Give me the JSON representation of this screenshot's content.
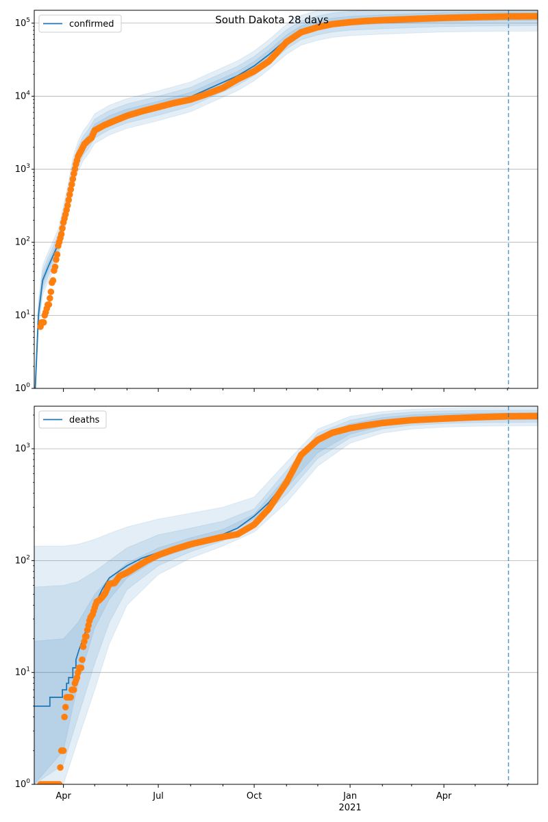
{
  "figure": {
    "title": "South Dakota 28 days"
  },
  "colors": {
    "model": "#1f77b4",
    "observed": "#ff7f0e",
    "band": "#1f77b4",
    "grid": "#b0b0b0",
    "vline": "#1f77b4"
  },
  "x_axis": {
    "ticks": [
      {
        "date": "2020-04-01",
        "label": "Apr"
      },
      {
        "date": "2020-07-01",
        "label": "Jul"
      },
      {
        "date": "2020-10-01",
        "label": "Oct"
      },
      {
        "date": "2021-01-01",
        "label": "Jan",
        "sublabel": "2021"
      },
      {
        "date": "2021-04-01",
        "label": "Apr"
      }
    ],
    "range": [
      "2020-03-04",
      "2021-06-30"
    ],
    "forecast_start": "2021-06-02"
  },
  "chart_data": [
    {
      "type": "line",
      "name": "confirmed",
      "legend": "confirmed",
      "yscale": "log",
      "ylim": [
        1,
        150000
      ],
      "yticks": [
        1,
        10,
        100,
        1000,
        10000,
        100000
      ],
      "ytick_labels": [
        "10^0",
        "10^1",
        "10^2",
        "10^3",
        "10^4",
        "10^5"
      ],
      "legend_position": "top-left",
      "grid": true,
      "model": {
        "x": [
          "2020-03-05",
          "2020-03-08",
          "2020-03-12",
          "2020-03-17",
          "2020-03-22",
          "2020-03-27",
          "2020-04-01",
          "2020-04-06",
          "2020-04-10",
          "2020-04-15",
          "2020-04-20",
          "2020-04-25",
          "2020-05-01",
          "2020-05-15",
          "2020-06-01",
          "2020-07-01",
          "2020-08-01",
          "2020-08-20",
          "2020-09-15",
          "2020-10-01",
          "2020-10-15",
          "2020-11-01",
          "2020-11-15",
          "2020-12-01",
          "2020-12-15",
          "2021-01-01",
          "2021-02-01",
          "2021-03-01",
          "2021-04-01",
          "2021-05-01",
          "2021-06-01",
          "2021-06-30"
        ],
        "y": [
          1,
          10,
          30,
          45,
          65,
          95,
          200,
          430,
          900,
          1500,
          2100,
          2600,
          3600,
          4700,
          5800,
          7400,
          9800,
          13000,
          19000,
          26000,
          37000,
          60000,
          80000,
          93000,
          102000,
          108000,
          113000,
          117000,
          121000,
          123000,
          124000,
          124500
        ]
      },
      "band_factors": [
        1.15,
        1.35,
        1.6
      ],
      "observed": {
        "x": [
          "2020-03-10",
          "2020-03-11",
          "2020-03-13",
          "2020-03-14",
          "2020-03-15",
          "2020-03-17",
          "2020-03-18",
          "2020-03-20",
          "2020-03-21",
          "2020-03-22",
          "2020-03-23",
          "2020-03-24",
          "2020-03-25",
          "2020-03-26",
          "2020-03-27",
          "2020-03-28",
          "2020-03-30",
          "2020-04-01",
          "2020-04-03",
          "2020-04-05",
          "2020-04-07",
          "2020-04-09",
          "2020-04-11",
          "2020-04-13",
          "2020-04-15",
          "2020-04-18",
          "2020-04-21",
          "2020-04-25",
          "2020-04-28",
          "2020-05-01",
          "2020-05-10",
          "2020-05-20",
          "2020-06-01",
          "2020-06-15",
          "2020-07-01",
          "2020-07-15",
          "2020-08-01",
          "2020-08-15",
          "2020-09-01",
          "2020-09-15",
          "2020-10-01",
          "2020-10-15",
          "2020-11-01",
          "2020-11-15",
          "2020-12-01",
          "2020-12-15",
          "2021-01-01",
          "2021-01-15",
          "2021-02-01",
          "2021-03-01",
          "2021-04-01",
          "2021-05-01",
          "2021-06-01",
          "2021-06-30"
        ],
        "y": [
          7,
          8,
          8,
          10,
          11,
          14,
          14,
          21,
          28,
          30,
          41,
          46,
          58,
          68,
          90,
          101,
          129,
          187,
          240,
          320,
          450,
          620,
          868,
          1168,
          1500,
          1800,
          2200,
          2500,
          2700,
          3400,
          4000,
          4600,
          5400,
          6200,
          7100,
          8000,
          9000,
          10500,
          13000,
          17000,
          22000,
          30000,
          55000,
          75000,
          88000,
          97000,
          103000,
          107000,
          110000,
          114000,
          118000,
          121000,
          123500,
          124200
        ]
      }
    },
    {
      "type": "line",
      "name": "deaths",
      "legend": "deaths",
      "yscale": "log",
      "ylim": [
        1,
        2400
      ],
      "yticks": [
        1,
        10,
        100,
        1000
      ],
      "ytick_labels": [
        "10^0",
        "10^1",
        "10^2",
        "10^3"
      ],
      "legend_position": "top-left",
      "grid": true,
      "model": {
        "x": [
          "2020-03-04",
          "2020-03-18",
          "2020-03-19",
          "2020-03-30",
          "2020-03-31",
          "2020-04-04",
          "2020-04-06",
          "2020-04-10",
          "2020-04-13",
          "2020-04-16",
          "2020-04-20",
          "2020-04-25",
          "2020-05-01",
          "2020-05-08",
          "2020-05-15",
          "2020-06-01",
          "2020-06-15",
          "2020-07-01",
          "2020-07-15",
          "2020-08-01",
          "2020-08-15",
          "2020-09-01",
          "2020-09-15",
          "2020-10-01",
          "2020-10-15",
          "2020-11-01",
          "2020-11-15",
          "2020-12-01",
          "2020-12-15",
          "2021-01-01",
          "2021-02-01",
          "2021-03-01",
          "2021-04-01",
          "2021-05-01",
          "2021-06-01",
          "2021-06-30"
        ],
        "y": [
          5,
          5,
          6,
          6,
          7,
          8,
          9,
          11,
          13,
          16,
          20,
          28,
          40,
          55,
          70,
          90,
          105,
          118,
          130,
          145,
          158,
          172,
          195,
          250,
          330,
          520,
          820,
          1150,
          1380,
          1560,
          1720,
          1830,
          1900,
          1930,
          1945,
          1950
        ]
      },
      "bands": {
        "x": [
          "2020-03-04",
          "2020-04-01",
          "2020-04-15",
          "2020-05-01",
          "2020-05-15",
          "2020-06-01",
          "2020-07-01",
          "2020-08-01",
          "2020-09-01",
          "2020-10-01",
          "2020-11-01",
          "2020-12-01",
          "2021-01-01",
          "2021-02-01",
          "2021-03-01",
          "2021-04-01",
          "2021-05-01",
          "2021-06-01",
          "2021-06-30"
        ],
        "outer_hi": [
          135,
          135,
          140,
          155,
          175,
          200,
          235,
          265,
          300,
          370,
          760,
          1500,
          1950,
          2150,
          2250,
          2300,
          2330,
          2340,
          2345
        ],
        "outer_lo": [
          1,
          1,
          2.5,
          7,
          18,
          40,
          75,
          105,
          135,
          180,
          330,
          700,
          1120,
          1380,
          1500,
          1560,
          1590,
          1600,
          1605
        ],
        "mid_hi": [
          58,
          60,
          65,
          80,
          100,
          130,
          170,
          195,
          225,
          290,
          640,
          1380,
          1800,
          2030,
          2130,
          2180,
          2200,
          2210,
          2215
        ],
        "mid_lo": [
          1,
          1.5,
          4,
          12,
          28,
          55,
          90,
          120,
          150,
          210,
          390,
          820,
          1250,
          1500,
          1620,
          1680,
          1710,
          1720,
          1725
        ],
        "inner_hi": [
          19,
          20,
          28,
          50,
          70,
          95,
          130,
          160,
          190,
          260,
          560,
          1250,
          1670,
          1900,
          2010,
          2060,
          2080,
          2090,
          2095
        ],
        "inner_lo": [
          1,
          2,
          8,
          25,
          45,
          70,
          105,
          130,
          165,
          235,
          450,
          920,
          1350,
          1600,
          1720,
          1780,
          1810,
          1820,
          1825
        ]
      },
      "observed": {
        "x": [
          "2020-03-10",
          "2020-03-12",
          "2020-03-14",
          "2020-03-16",
          "2020-03-18",
          "2020-03-20",
          "2020-03-22",
          "2020-03-24",
          "2020-03-26",
          "2020-03-28",
          "2020-03-30",
          "2020-04-01",
          "2020-04-02",
          "2020-04-04",
          "2020-04-05",
          "2020-04-07",
          "2020-04-08",
          "2020-04-09",
          "2020-04-11",
          "2020-04-12",
          "2020-04-14",
          "2020-04-15",
          "2020-04-16",
          "2020-04-18",
          "2020-04-19",
          "2020-04-20",
          "2020-04-22",
          "2020-04-23",
          "2020-04-24",
          "2020-04-26",
          "2020-04-27",
          "2020-04-29",
          "2020-05-01",
          "2020-05-03",
          "2020-05-05",
          "2020-05-08",
          "2020-05-11",
          "2020-05-15",
          "2020-05-20",
          "2020-05-25",
          "2020-06-01",
          "2020-06-10",
          "2020-06-20",
          "2020-07-01",
          "2020-07-15",
          "2020-08-01",
          "2020-08-15",
          "2020-09-01",
          "2020-09-15",
          "2020-10-01",
          "2020-10-15",
          "2020-11-01",
          "2020-11-15",
          "2020-12-01",
          "2020-12-15",
          "2021-01-01",
          "2021-01-15",
          "2021-02-01",
          "2021-03-01",
          "2021-04-01",
          "2021-05-01",
          "2021-06-01",
          "2021-06-30"
        ],
        "y": [
          1,
          1,
          1,
          1,
          1,
          1,
          1,
          1,
          1,
          1,
          2,
          2,
          4,
          6,
          6,
          6,
          6,
          7,
          7,
          8,
          9,
          10,
          11,
          11,
          13,
          17,
          21,
          21,
          24,
          29,
          31,
          33,
          38,
          43,
          44,
          47,
          51,
          62,
          63,
          73,
          78,
          88,
          100,
          112,
          125,
          140,
          150,
          163,
          172,
          210,
          290,
          500,
          880,
          1200,
          1390,
          1530,
          1610,
          1700,
          1800,
          1860,
          1910,
          1950,
          1960
        ]
      }
    }
  ]
}
